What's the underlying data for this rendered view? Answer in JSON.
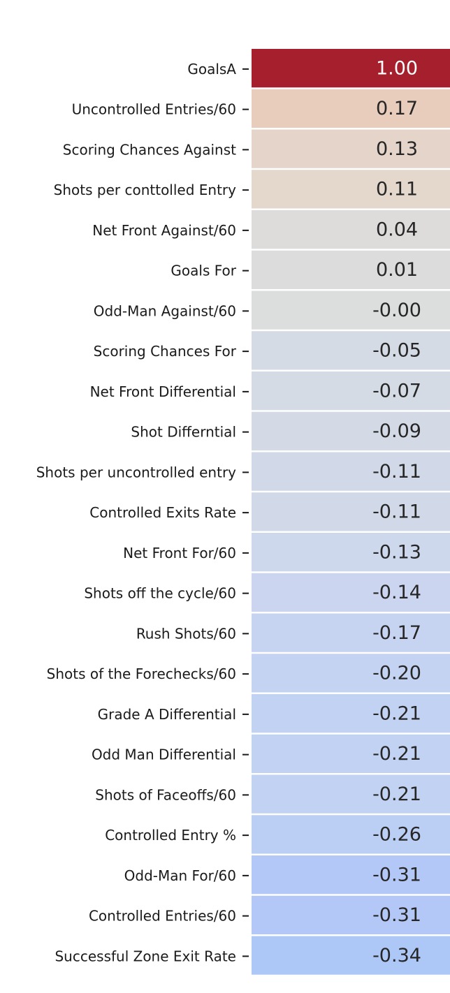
{
  "chart_data": {
    "type": "heatmap",
    "title": "",
    "xlabel": "",
    "ylabel": "",
    "categories": [
      "GoalsA",
      "Uncontrolled Entries/60",
      "Scoring Chances Against",
      "Shots per conttolled Entry",
      "Net Front Against/60",
      "Goals For",
      "Odd-Man Against/60",
      "Scoring Chances For",
      "Net Front Differential",
      "Shot Differntial",
      "Shots per uncontrolled entry",
      "Controlled Exits Rate",
      "Net Front For/60",
      "Shots off the cycle/60",
      "Rush Shots/60",
      "Shots of the Forechecks/60",
      "Grade A Differential",
      "Odd Man Differential",
      "Shots of Faceoffs/60",
      "Controlled Entry %",
      "Odd-Man For/60",
      "Controlled Entries/60",
      "Successful Zone Exit Rate"
    ],
    "values": [
      1.0,
      0.17,
      0.13,
      0.11,
      0.04,
      0.01,
      -0.0,
      -0.05,
      -0.07,
      -0.09,
      -0.11,
      -0.11,
      -0.13,
      -0.14,
      -0.17,
      -0.2,
      -0.21,
      -0.21,
      -0.21,
      -0.26,
      -0.31,
      -0.31,
      -0.34
    ],
    "annotations": [
      "1.00",
      "0.17",
      "0.13",
      "0.11",
      "0.04",
      "0.01",
      "-0.00",
      "-0.05",
      "-0.07",
      "-0.09",
      "-0.11",
      "-0.11",
      "-0.13",
      "-0.14",
      "-0.17",
      "-0.20",
      "-0.21",
      "-0.21",
      "-0.21",
      "-0.26",
      "-0.31",
      "-0.31",
      "-0.34"
    ],
    "colormap": "coolwarm",
    "color_range": [
      -1,
      1
    ],
    "cell_colors": [
      "#a51f2d",
      "#e8ccbc",
      "#e5d4c9",
      "#e4d7cc",
      "#dedcdb",
      "#dcdcdc",
      "#dcdddd",
      "#d5dbe4",
      "#d5dbe4",
      "#d3dae6",
      "#d1d9e8",
      "#d1d9e8",
      "#cdd8ed",
      "#ccd5ef",
      "#c7d4f1",
      "#c4d3f2",
      "#c2d2f3",
      "#c2d2f3",
      "#c2d2f3",
      "#bbcff5",
      "#b3c8f6",
      "#b3c8f6",
      "#adc7f7"
    ],
    "text_color_dark_cell": "#ffffff",
    "text_color_light_cell": "#262626"
  }
}
